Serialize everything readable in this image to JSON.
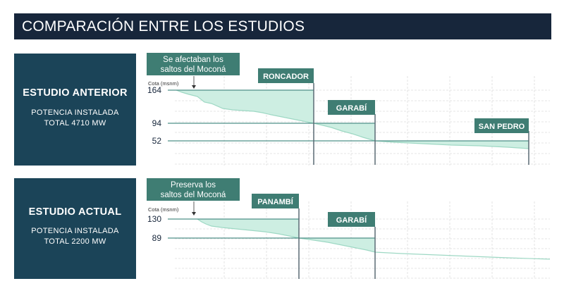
{
  "header": {
    "title": "COMPARACIÓN ENTRE LOS ESTUDIOS"
  },
  "colors": {
    "header_bg": "#17263b",
    "panel_bg": "#1b4458",
    "label_bg": "#3f7d73",
    "fill": "#cdeee2",
    "profile_line": "#9ed8c4",
    "level_line": "#4f9089"
  },
  "anterior": {
    "title": "ESTUDIO ANTERIOR",
    "subtitle_line1": "POTENCIA INSTALADA",
    "subtitle_line2": "TOTAL 4710 MW",
    "callout_line1": "Se afectaban los",
    "callout_line2": "saltos del Moconá",
    "cota_label": "Cota (msnm)",
    "levels": [
      "164",
      "94",
      "52"
    ],
    "dams": [
      "RONCADOR",
      "GARABÍ",
      "SAN PEDRO"
    ]
  },
  "actual": {
    "title": "ESTUDIO ACTUAL",
    "subtitle_line1": "POTENCIA INSTALADA",
    "subtitle_line2": "TOTAL 2200 MW",
    "callout_line1": "Preserva los",
    "callout_line2": "saltos del Moconá",
    "cota_label": "Cota (msnm)",
    "levels": [
      "130",
      "89"
    ],
    "dams": [
      "PANAMBÍ",
      "GARABÍ"
    ]
  }
}
